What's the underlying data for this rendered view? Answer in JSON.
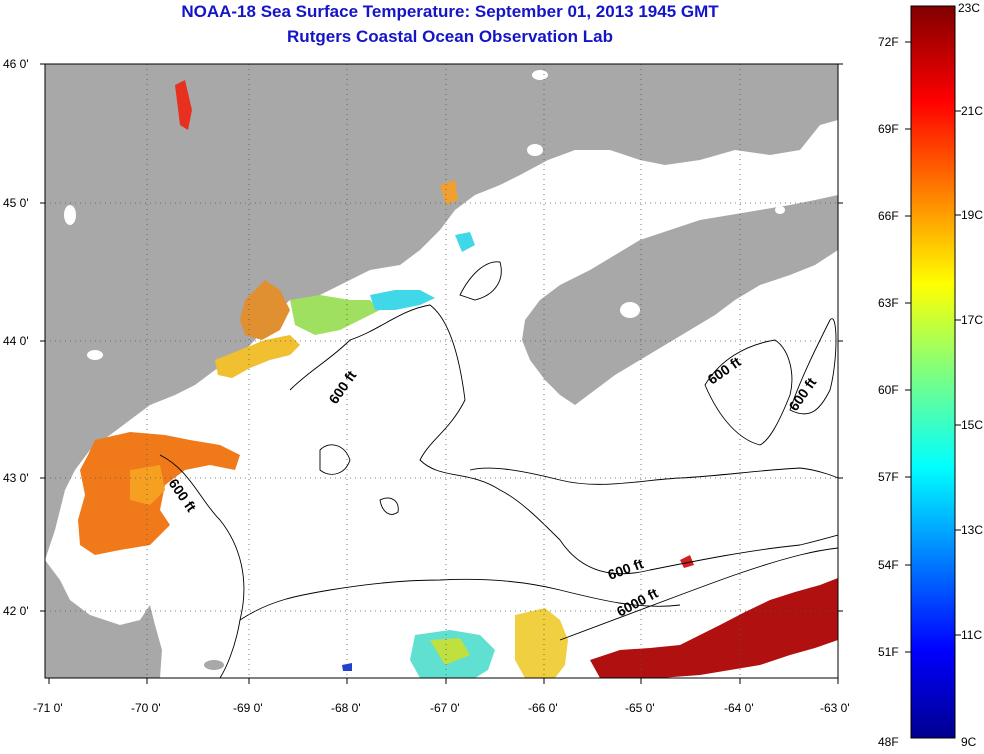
{
  "header": {
    "title": "NOAA-18 Sea Surface Temperature:  September 01, 2013 1945 GMT",
    "subtitle": "Rutgers Coastal Ocean Observation Lab"
  },
  "axes": {
    "lat_ticks": [
      "46 0'",
      "45 0'",
      "44 0'",
      "43 0'",
      "42 0'"
    ],
    "lon_ticks": [
      "-71 0'",
      "-70 0'",
      "-69 0'",
      "-68 0'",
      "-67 0'",
      "-66 0'",
      "-65 0'",
      "-64 0'",
      "-63 0'"
    ]
  },
  "contours": {
    "labels": [
      "600 ft",
      "600 ft",
      "600 ft",
      "600 ft",
      "600 ft",
      "6000 ft"
    ]
  },
  "colorbar": {
    "fahrenheit": [
      "72F",
      "69F",
      "66F",
      "63F",
      "60F",
      "57F",
      "54F",
      "51F",
      "48F"
    ],
    "celsius": [
      "23C",
      "21C",
      "19C",
      "17C",
      "15C",
      "13C",
      "11C",
      "9C"
    ]
  },
  "colors": {
    "land": "#a8a8a8",
    "ocean": "#ffffff",
    "title": "#1515c8",
    "sst_warm": "#b01010",
    "sst_orange": "#f07a1a",
    "sst_yellow": "#e8d830",
    "sst_cyan": "#30d0e8"
  }
}
